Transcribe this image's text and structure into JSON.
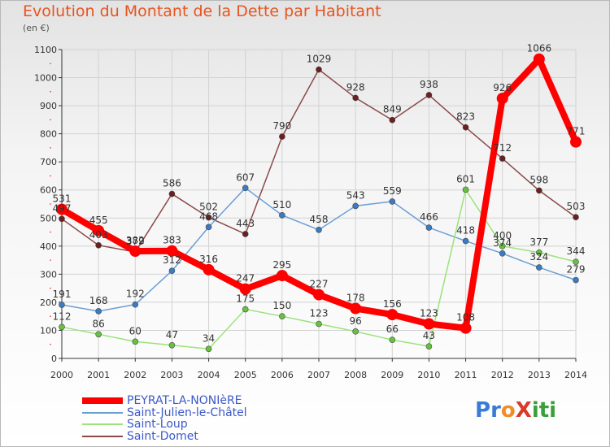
{
  "title": "Evolution du Montant de la Dette par Habitant",
  "unit": "(en €)",
  "logo": {
    "text": "Proxiti",
    "letters": [
      {
        "ch": "P",
        "color": "#3a7bd5"
      },
      {
        "ch": "r",
        "color": "#3a7bd5"
      },
      {
        "ch": "o",
        "color": "#f28c28"
      },
      {
        "ch": "X",
        "color": "#d83a2a"
      },
      {
        "ch": "i",
        "color": "#3a9f3a"
      },
      {
        "ch": "t",
        "color": "#3a9f3a"
      },
      {
        "ch": "i",
        "color": "#3a9f3a"
      }
    ]
  },
  "chart_data": {
    "type": "line",
    "title": "Evolution du Montant de la Dette par Habitant",
    "ylabel": "(en €)",
    "xlabel": "",
    "ylim": [
      0,
      1100
    ],
    "yticks": [
      0,
      100,
      200,
      300,
      400,
      500,
      600,
      700,
      800,
      900,
      1000,
      1100
    ],
    "grid": true,
    "legend_position": "bottom-left",
    "categories": [
      "2000",
      "2001",
      "2002",
      "2003",
      "2004",
      "2005",
      "2006",
      "2007",
      "2008",
      "2009",
      "2010",
      "2011",
      "2012",
      "2013",
      "2014"
    ],
    "series": [
      {
        "name": "PEYRAT-LA-NONIèRE",
        "color": "#ff0000",
        "point_color": "#ff0000",
        "values": [
          531,
          455,
          382,
          383,
          316,
          247,
          295,
          227,
          178,
          156,
          123,
          108,
          926,
          1066,
          771
        ]
      },
      {
        "name": "Saint-Julien-le-Châtel",
        "color": "#6b9fd4",
        "point_color": "#3b7bc4",
        "values": [
          191,
          168,
          192,
          312,
          468,
          607,
          510,
          458,
          543,
          559,
          466,
          418,
          374,
          324,
          279
        ]
      },
      {
        "name": "Saint-Loup",
        "color": "#9be37a",
        "point_color": "#67c13f",
        "values": [
          112,
          86,
          60,
          47,
          34,
          175,
          150,
          123,
          96,
          66,
          43,
          601,
          400,
          377,
          344
        ]
      },
      {
        "name": "Saint-Domet",
        "color": "#8a4a4a",
        "point_color": "#6b1f1f",
        "values": [
          497,
          403,
          379,
          586,
          502,
          443,
          790,
          1029,
          928,
          849,
          938,
          823,
          712,
          598,
          503
        ]
      }
    ]
  }
}
